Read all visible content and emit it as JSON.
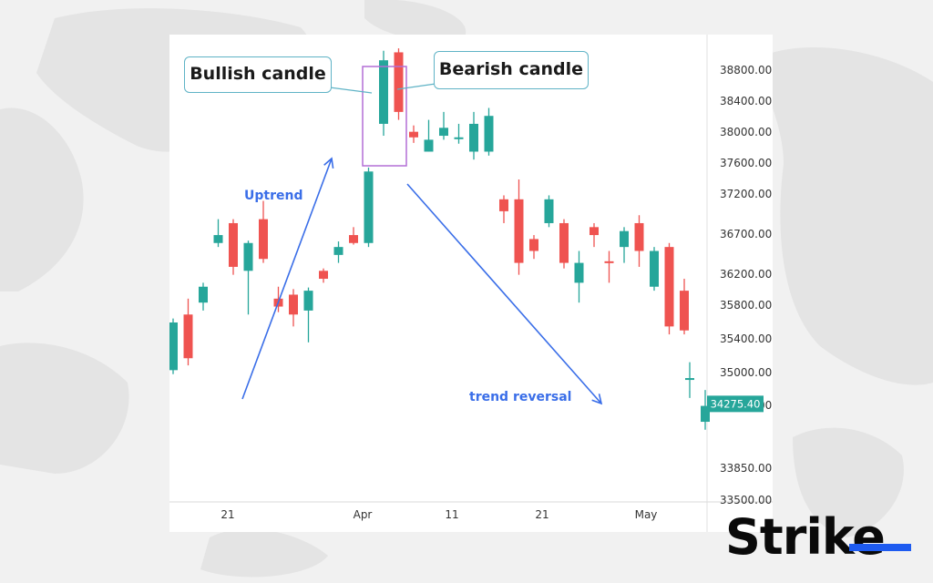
{
  "colors": {
    "up": "#26a69a",
    "down": "#ef5350",
    "arrow": "#3a6ee8",
    "callout_border": "#5fb3c6",
    "highlight_box": "#b36fd6",
    "last_price_bg": "#26a69a",
    "logo_accent": "#1e5bf0"
  },
  "annotations": {
    "bullish": "Bullish candle",
    "bearish": "Bearish candle",
    "uptrend": "Uptrend",
    "reversal": "trend reversal"
  },
  "logo": {
    "text": "Strike"
  },
  "chart_data": {
    "type": "candlestick",
    "y_ticks": [
      "38800.00",
      "38400.00",
      "38000.00",
      "37600.00",
      "37200.00",
      "36700.00",
      "36200.00",
      "35800.00",
      "35400.00",
      "35000.00",
      "34600.00",
      "33850.00",
      "33500.00"
    ],
    "x_ticks": [
      "21",
      "Apr",
      "11",
      "21",
      "May"
    ],
    "last_price": "34275.40",
    "ylim": [
      33500,
      38900
    ],
    "candles": [
      {
        "o": 34700,
        "c": 35300,
        "h": 35350,
        "l": 34650
      },
      {
        "o": 35400,
        "c": 34850,
        "h": 35600,
        "l": 34760
      },
      {
        "o": 35550,
        "c": 35750,
        "h": 35800,
        "l": 35450
      },
      {
        "o": 36300,
        "c": 36400,
        "h": 36600,
        "l": 36250
      },
      {
        "o": 36550,
        "c": 36000,
        "h": 36600,
        "l": 35900
      },
      {
        "o": 35950,
        "c": 36300,
        "h": 36330,
        "l": 35400
      },
      {
        "o": 36600,
        "c": 36100,
        "h": 36830,
        "l": 36050
      },
      {
        "o": 35600,
        "c": 35500,
        "h": 35750,
        "l": 35430
      },
      {
        "o": 35650,
        "c": 35400,
        "h": 35720,
        "l": 35250
      },
      {
        "o": 35450,
        "c": 35700,
        "h": 35740,
        "l": 35050
      },
      {
        "o": 35950,
        "c": 35850,
        "h": 35980,
        "l": 35800
      },
      {
        "o": 36150,
        "c": 36250,
        "h": 36320,
        "l": 36050
      },
      {
        "o": 36400,
        "c": 36300,
        "h": 36500,
        "l": 36280
      },
      {
        "o": 36300,
        "c": 37200,
        "h": 37250,
        "l": 36250
      },
      {
        "o": 37800,
        "c": 38600,
        "h": 38720,
        "l": 37650
      },
      {
        "o": 38700,
        "c": 37950,
        "h": 38750,
        "l": 37850
      },
      {
        "o": 37700,
        "c": 37630,
        "h": 37780,
        "l": 37560
      },
      {
        "o": 37450,
        "c": 37600,
        "h": 37850,
        "l": 37450
      },
      {
        "o": 37650,
        "c": 37750,
        "h": 37950,
        "l": 37600
      },
      {
        "o": 37620,
        "c": 37630,
        "h": 37800,
        "l": 37550
      },
      {
        "o": 37450,
        "c": 37800,
        "h": 37950,
        "l": 37350
      },
      {
        "o": 37450,
        "c": 37900,
        "h": 38000,
        "l": 37400
      },
      {
        "o": 36850,
        "c": 36700,
        "h": 36900,
        "l": 36550
      },
      {
        "o": 36850,
        "c": 36050,
        "h": 37100,
        "l": 35900
      },
      {
        "o": 36350,
        "c": 36200,
        "h": 36400,
        "l": 36100
      },
      {
        "o": 36550,
        "c": 36850,
        "h": 36900,
        "l": 36500
      },
      {
        "o": 36550,
        "c": 36050,
        "h": 36600,
        "l": 35980
      },
      {
        "o": 35800,
        "c": 36050,
        "h": 36200,
        "l": 35550
      },
      {
        "o": 36500,
        "c": 36400,
        "h": 36550,
        "l": 36250
      },
      {
        "o": 36070,
        "c": 36050,
        "h": 36200,
        "l": 35800
      },
      {
        "o": 36250,
        "c": 36450,
        "h": 36500,
        "l": 36050
      },
      {
        "o": 36550,
        "c": 36200,
        "h": 36650,
        "l": 36000
      },
      {
        "o": 35750,
        "c": 36200,
        "h": 36250,
        "l": 35700
      },
      {
        "o": 36250,
        "c": 35250,
        "h": 36300,
        "l": 35150
      },
      {
        "o": 35700,
        "c": 35200,
        "h": 35850,
        "l": 35150
      },
      {
        "o": 34580,
        "c": 34600,
        "h": 34800,
        "l": 34350
      },
      {
        "o": 34050,
        "c": 34250,
        "h": 34450,
        "l": 33950
      }
    ]
  }
}
